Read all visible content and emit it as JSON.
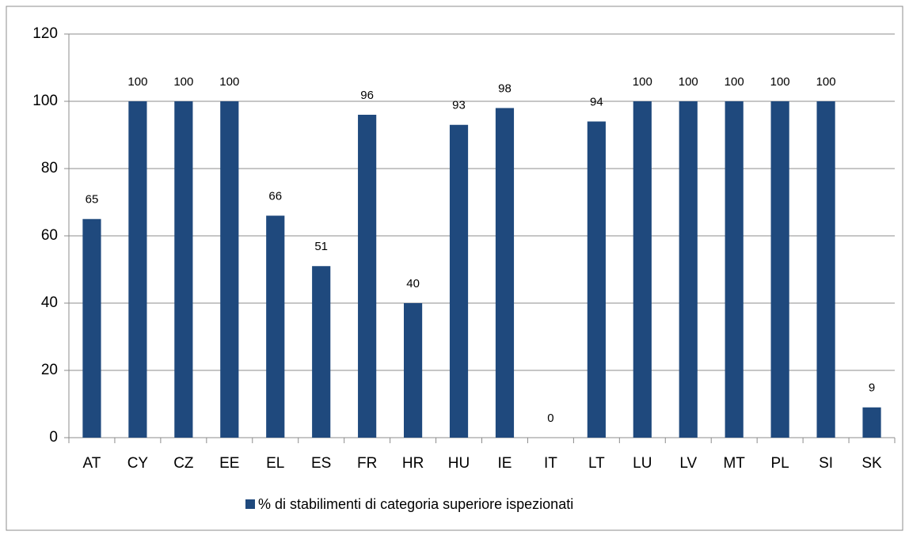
{
  "chart_data": {
    "type": "bar",
    "categories": [
      "AT",
      "CY",
      "CZ",
      "EE",
      "EL",
      "ES",
      "FR",
      "HR",
      "HU",
      "IE",
      "IT",
      "LT",
      "LU",
      "LV",
      "MT",
      "PL",
      "SI",
      "SK"
    ],
    "series": [
      {
        "name": "% di stabilimenti di categoria superiore ispezionati",
        "color": "#1f497d",
        "values": [
          65,
          100,
          100,
          100,
          66,
          51,
          96,
          40,
          93,
          98,
          0,
          94,
          100,
          100,
          100,
          100,
          100,
          9
        ]
      }
    ],
    "ylim": [
      0,
      120
    ],
    "yticks": [
      0,
      20,
      40,
      60,
      80,
      100,
      120
    ],
    "grid": true,
    "legend": "bottom"
  }
}
